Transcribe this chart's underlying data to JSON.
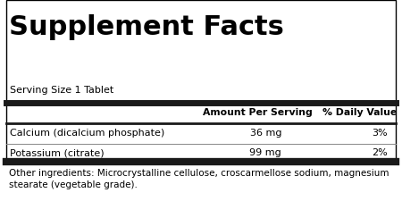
{
  "title": "Supplement Facts",
  "serving_size": "Serving Size 1 Tablet",
  "col_headers": [
    "Amount Per Serving",
    "% Daily Value"
  ],
  "rows": [
    {
      "name": "Calcium (dicalcium phosphate)",
      "amount": "36 mg",
      "dv": "3%"
    },
    {
      "name": "Potassium (citrate)",
      "amount": "99 mg",
      "dv": "2%"
    }
  ],
  "other_ingredients": "Other ingredients: Microcrystalline cellulose, croscarmellose sodium, magnesium\nstearate (vegetable grade).",
  "bg_color": "#ffffff",
  "border_color": "#000000",
  "thick_bar_color": "#1a1a1a",
  "text_color": "#000000",
  "title_fontsize": 22,
  "serving_fontsize": 8,
  "header_fontsize": 7.8,
  "row_fontsize": 8,
  "other_fontsize": 7.5
}
